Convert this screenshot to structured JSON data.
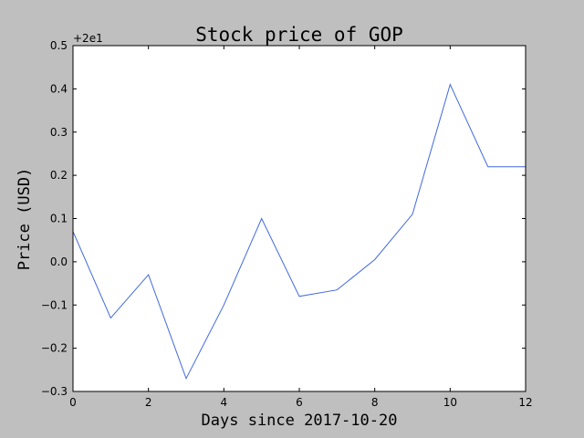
{
  "chart_data": {
    "type": "line",
    "title": "Stock price of GOP",
    "xlabel": "Days since 2017-10-20",
    "ylabel": "Price (USD)",
    "offset_label": "+2e1",
    "xlim": [
      0,
      12
    ],
    "ylim": [
      -0.3,
      0.5
    ],
    "xticks": [
      0,
      2,
      4,
      6,
      8,
      10,
      12
    ],
    "xtick_labels": [
      "0",
      "2",
      "4",
      "6",
      "8",
      "10",
      "12"
    ],
    "yticks": [
      -0.3,
      -0.2,
      -0.1,
      0.0,
      0.1,
      0.2,
      0.3,
      0.4,
      0.5
    ],
    "ytick_labels": [
      "−0.3",
      "−0.2",
      "−0.1",
      "0.0",
      "0.1",
      "0.2",
      "0.3",
      "0.4",
      "0.5"
    ],
    "grid": false,
    "x": [
      0,
      1,
      2,
      3,
      4,
      5,
      6,
      7,
      8,
      9,
      10,
      11,
      12
    ],
    "series": [
      {
        "values": [
          0.07,
          -0.13,
          -0.03,
          -0.27,
          -0.1,
          0.1,
          -0.08,
          -0.065,
          0.005,
          0.11,
          0.41,
          0.22,
          0.22
        ],
        "color": "#4169e1"
      }
    ],
    "colors": {
      "background": "#bfbfbf",
      "plot_area": "#ffffff",
      "axis": "#000000"
    }
  }
}
